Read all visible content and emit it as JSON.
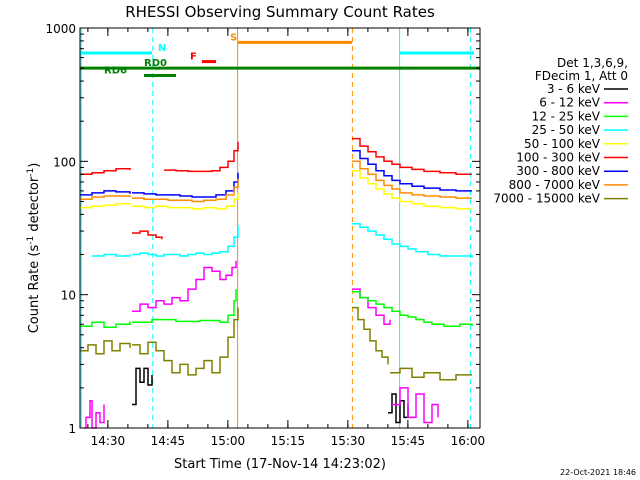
{
  "chart_data": {
    "type": "line",
    "title": "RHESSI Observing Summary Count Rates",
    "xlabel": "Start Time (17-Nov-14 14:23:02)",
    "ylabel_main": "Count Rate (s",
    "ylabel_sup1": "-1",
    "ylabel_mid": " detector",
    "ylabel_sup2": "-1",
    "ylabel_end": ")",
    "yscale": "log",
    "ylim": [
      1,
      1000
    ],
    "xlim_minutes": [
      0,
      100
    ],
    "x_ticks": [
      {
        "label": "14:30",
        "t": 6.97
      },
      {
        "label": "14:45",
        "t": 21.97
      },
      {
        "label": "15:00",
        "t": 36.97
      },
      {
        "label": "15:15",
        "t": 51.97
      },
      {
        "label": "15:30",
        "t": 66.97
      },
      {
        "label": "15:45",
        "t": 81.97
      },
      {
        "label": "16:00",
        "t": 96.97
      }
    ],
    "y_ticks": [
      {
        "label": "1",
        "v": 1
      },
      {
        "label": "10",
        "v": 10
      },
      {
        "label": "100",
        "v": 100
      },
      {
        "label": "1000",
        "v": 1000
      }
    ],
    "legend_title_1": "Det 1,3,6,9,",
    "legend_title_2": "FDecim 1, Att 0",
    "legend_position": "right",
    "series": [
      {
        "name": "3 - 6 keV",
        "color": "#000000",
        "segments": [
          {
            "x": [
              13.0,
              14.0,
              15.0,
              16.0,
              17.0,
              18.0
            ],
            "y": [
              1.5,
              2.8,
              2.2,
              2.8,
              2.1,
              2.5
            ]
          },
          {
            "x": [
              77.0,
              78.0,
              79.0,
              80.0,
              81.0,
              82.0
            ],
            "y": [
              1.3,
              1.8,
              1.1,
              1.6,
              1.2,
              1.5
            ]
          }
        ]
      },
      {
        "name": "6 - 12 keV",
        "color": "#ff00ff",
        "segments": [
          {
            "x": [
              1.0,
              1.5,
              2.5,
              3.0,
              4.0,
              5.0,
              6.0
            ],
            "y": [
              1.0,
              1.2,
              1.6,
              1.0,
              1.3,
              1.1,
              1.5
            ]
          },
          {
            "x": [
              13.0,
              15.0,
              17.0,
              19.0,
              21.0,
              23.0,
              25.0,
              27.0,
              29.0,
              31.0,
              33.0,
              35.0,
              36.5,
              38.0,
              39.0
            ],
            "y": [
              7.5,
              8.5,
              8.0,
              9.0,
              8.5,
              9.5,
              9.0,
              11.0,
              13.0,
              16.0,
              15.0,
              13.0,
              14.0,
              16.0,
              18.0
            ]
          },
          {
            "x": [
              68.0,
              70.0,
              72.0,
              74.0,
              76.0,
              77.5
            ],
            "y": [
              11.0,
              9.5,
              8.0,
              7.0,
              6.0,
              6.5
            ]
          },
          {
            "x": [
              78.0,
              80.0,
              82.0,
              84.0,
              86.0,
              88.0,
              89.5
            ],
            "y": [
              1.5,
              2.0,
              1.2,
              1.8,
              1.1,
              1.5,
              1.2
            ]
          }
        ]
      },
      {
        "name": "12 - 25 keV",
        "color": "#00ff00",
        "segments": [
          {
            "x": [
              0.0,
              3.0,
              6.0,
              9.0,
              12.5
            ],
            "y": [
              5.8,
              6.2,
              5.7,
              6.0,
              6.3
            ]
          },
          {
            "x": [
              13.0,
              18.0,
              24.0,
              30.0,
              35.0,
              37.0,
              38.5,
              39.0
            ],
            "y": [
              6.2,
              6.5,
              6.3,
              6.4,
              6.2,
              7.0,
              9.0,
              11.0
            ]
          },
          {
            "x": [
              68.0,
              70.0,
              72.0,
              74.0,
              76.0,
              78.0,
              80.0,
              82.0,
              84.0,
              86.0,
              88.0,
              91.0,
              95.0,
              98.0
            ],
            "y": [
              10.5,
              9.5,
              9.0,
              8.5,
              8.0,
              7.5,
              7.0,
              6.8,
              6.5,
              6.2,
              6.0,
              5.8,
              6.0,
              5.8
            ]
          }
        ]
      },
      {
        "name": "25 - 50 keV",
        "color": "#00ffff",
        "segments": [
          {
            "x": [
              3.0,
              6.0,
              9.0,
              12.5
            ],
            "y": [
              19.5,
              20.0,
              19.5,
              20.0
            ]
          },
          {
            "x": [
              13.0,
              15.0,
              17.0,
              19.0,
              21.0,
              23.0,
              25.0,
              27.0,
              29.0,
              31.0,
              33.0,
              35.0,
              37.0,
              38.5,
              39.5
            ],
            "y": [
              20.0,
              20.5,
              20.0,
              19.5,
              20.0,
              20.0,
              19.5,
              20.0,
              20.5,
              20.0,
              20.5,
              21.0,
              23.0,
              27.0,
              33.0
            ]
          },
          {
            "x": [
              68.0,
              70.0,
              72.0,
              74.0,
              76.0,
              78.0,
              80.0,
              82.0,
              84.0,
              87.0,
              90.0,
              93.0,
              98.0
            ],
            "y": [
              34.0,
              32.0,
              30.0,
              28.0,
              26.0,
              24.0,
              23.0,
              22.0,
              21.0,
              20.0,
              19.5,
              19.5,
              19.0
            ]
          }
        ]
      },
      {
        "name": "50 - 100 keV",
        "color": "#ffff00",
        "segments": [
          {
            "x": [
              0.0,
              3.0,
              6.0,
              9.0,
              12.5
            ],
            "y": [
              45.0,
              46.0,
              47.0,
              48.0,
              47.0
            ]
          },
          {
            "x": [
              13.0,
              16.0,
              19.0,
              22.0,
              25.0,
              28.0,
              31.0,
              34.0,
              36.5,
              38.5,
              39.5
            ],
            "y": [
              46.0,
              45.0,
              46.0,
              45.0,
              45.0,
              44.0,
              45.0,
              44.0,
              46.0,
              52.0,
              58.0
            ]
          },
          {
            "x": [
              68.0,
              70.0,
              72.0,
              74.0,
              76.0,
              78.0,
              80.0,
              83.0,
              86.0,
              90.0,
              94.0,
              98.0
            ],
            "y": [
              85.0,
              75.0,
              68.0,
              62.0,
              57.0,
              53.0,
              50.0,
              48.0,
              46.0,
              45.0,
              44.0,
              44.0
            ]
          }
        ]
      },
      {
        "name": "100 - 300 keV",
        "color": "#ff0000",
        "segments": [
          {
            "x": [
              0.0,
              3.0,
              6.0,
              9.0,
              12.5
            ],
            "y": [
              80.0,
              82.0,
              85.0,
              88.0,
              86.0
            ]
          },
          {
            "x": [
              13.0,
              15.0,
              17.0,
              19.0,
              20.5
            ],
            "y": [
              29.0,
              30.0,
              28.0,
              27.0,
              26.0
            ]
          },
          {
            "x": [
              21.0,
              24.0,
              27.0,
              30.0,
              33.0,
              35.0,
              37.0,
              38.5,
              39.5
            ],
            "y": [
              86.0,
              85.0,
              84.0,
              84.0,
              85.0,
              90.0,
              100.0,
              120.0,
              140.0
            ]
          },
          {
            "x": [
              68.0,
              70.0,
              72.0,
              74.0,
              76.0,
              78.0,
              80.0,
              83.0,
              86.0,
              90.0,
              94.0,
              98.0
            ],
            "y": [
              148.0,
              130.0,
              118.0,
              108.0,
              100.0,
              95.0,
              90.0,
              87.0,
              84.0,
              82.0,
              80.0,
              80.0
            ]
          }
        ]
      },
      {
        "name": "300 - 800 keV",
        "color": "#0000ff",
        "segments": [
          {
            "x": [
              0.0,
              3.0,
              6.0,
              9.0,
              12.5
            ],
            "y": [
              56.0,
              58.0,
              60.0,
              59.0,
              57.0
            ]
          },
          {
            "x": [
              13.0,
              16.0,
              19.0,
              22.0,
              25.0,
              28.0,
              31.0,
              34.0,
              36.5,
              38.5,
              39.5
            ],
            "y": [
              58.0,
              57.0,
              56.0,
              56.0,
              55.0,
              54.0,
              54.0,
              56.0,
              60.0,
              70.0,
              82.0
            ]
          },
          {
            "x": [
              68.0,
              70.0,
              72.0,
              74.0,
              76.0,
              78.0,
              80.0,
              83.0,
              86.0,
              90.0,
              94.0,
              98.0
            ],
            "y": [
              120.0,
              105.0,
              95.0,
              85.0,
              78.0,
              72.0,
              68.0,
              65.0,
              63.0,
              61.0,
              60.0,
              60.0
            ]
          }
        ]
      },
      {
        "name": "800 - 7000 keV",
        "color": "#ff8c00",
        "segments": [
          {
            "x": [
              0.0,
              3.0,
              6.0,
              9.0,
              12.5
            ],
            "y": [
              52.0,
              54.0,
              55.0,
              55.0,
              54.0
            ]
          },
          {
            "x": [
              13.0,
              16.0,
              19.0,
              22.0,
              25.0,
              28.0,
              31.0,
              34.0,
              36.5,
              38.5,
              39.5
            ],
            "y": [
              53.0,
              52.0,
              52.0,
              51.0,
              51.0,
              50.0,
              51.0,
              52.0,
              56.0,
              64.0,
              74.0
            ]
          },
          {
            "x": [
              68.0,
              70.0,
              72.0,
              74.0,
              76.0,
              78.0,
              80.0,
              83.0,
              86.0,
              90.0,
              94.0,
              98.0
            ],
            "y": [
              100.0,
              88.0,
              80.0,
              72.0,
              66.0,
              62.0,
              58.0,
              56.0,
              55.0,
              54.0,
              53.0,
              53.0
            ]
          }
        ]
      },
      {
        "name": "7000 - 15000 keV",
        "color": "#808000",
        "segments": [
          {
            "x": [
              0.0,
              2.0,
              4.0,
              6.0,
              8.0,
              10.0,
              12.5
            ],
            "y": [
              3.8,
              4.2,
              3.6,
              4.5,
              3.8,
              4.3,
              4.0
            ]
          },
          {
            "x": [
              13.0,
              15.0,
              17.0,
              19.0,
              21.0,
              23.0,
              25.0,
              27.0,
              29.0,
              31.0,
              33.0,
              35.0,
              37.0,
              38.5,
              39.5
            ],
            "y": [
              4.2,
              3.6,
              4.4,
              3.8,
              3.2,
              2.6,
              3.0,
              2.5,
              2.8,
              3.2,
              2.6,
              3.4,
              4.8,
              6.5,
              8.0
            ]
          },
          {
            "x": [
              68.0,
              69.5,
              71.0,
              72.5,
              74.0,
              75.5,
              77.0
            ],
            "y": [
              8.0,
              6.5,
              5.5,
              4.5,
              3.8,
              3.4,
              3.0
            ]
          },
          {
            "x": [
              77.5,
              80.0,
              83.0,
              86.0,
              90.0,
              94.0,
              98.0
            ],
            "y": [
              2.6,
              2.8,
              2.4,
              2.6,
              2.3,
              2.5,
              2.5
            ]
          }
        ]
      }
    ],
    "event_bars": [
      {
        "label": "N",
        "color": "#00ffff",
        "x0": 0.0,
        "x1": 18.0,
        "level": 650,
        "label_x": 19.5
      },
      {
        "label": "N",
        "color": "#00ffff",
        "x0": 80.0,
        "x1": 98.5,
        "level": 650,
        "label_x": null
      },
      {
        "label": "S",
        "color": "#ff8c00",
        "x0": 39.5,
        "x1": 68.0,
        "level": 780,
        "label_x": 37.5
      },
      {
        "label": "F",
        "color": "#ff0000",
        "x0": 30.5,
        "x1": 34.0,
        "level": 560,
        "label_x": 27.5
      },
      {
        "label": "RD0",
        "color": "#008000",
        "x0": 0.0,
        "x1": 100.0,
        "level": 500,
        "label_x": 16.0
      },
      {
        "label": "RD6",
        "color": "#008000",
        "x0": 16.0,
        "x1": 24.0,
        "level": 440,
        "label_x": 6.0
      }
    ],
    "vlines": [
      {
        "x": 0.3,
        "color": "#00ffff",
        "dash": false
      },
      {
        "x": 18.2,
        "color": "#00ffff",
        "dash": true
      },
      {
        "x": 39.4,
        "color": "#ff8c00",
        "dash": false
      },
      {
        "x": 68.1,
        "color": "#ff8c00",
        "dash": true
      },
      {
        "x": 79.9,
        "color": "#00ffff",
        "dash": false
      },
      {
        "x": 97.6,
        "color": "#00ffff",
        "dash": true
      }
    ],
    "grid": false
  },
  "footer_date": "22-Oct-2021 18:46"
}
